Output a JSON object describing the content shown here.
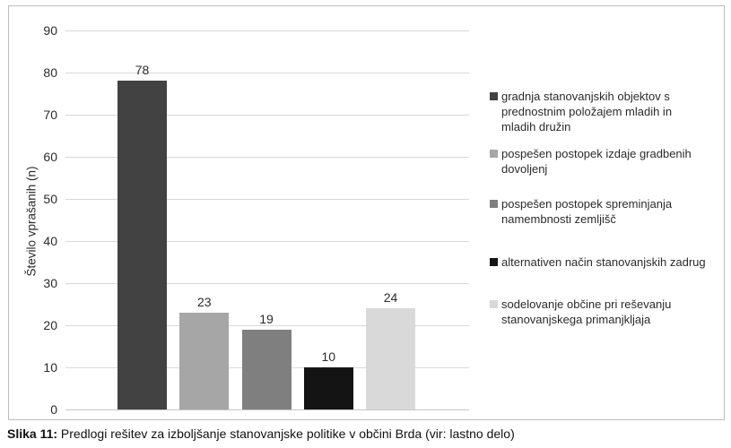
{
  "figure": {
    "caption_prefix": "Slika 11:",
    "caption_text": " Predlogi rešitev za izboljšanje stanovanjske politike v občini Brda (vir: lastno delo)"
  },
  "chart_data": {
    "type": "bar",
    "title": "",
    "xlabel": "",
    "ylabel": "Število vprašanih (n)",
    "ylim": [
      0,
      90
    ],
    "yticks": [
      90,
      80,
      70,
      60,
      50,
      40,
      30,
      20,
      10,
      0
    ],
    "grid": true,
    "legend_position": "right",
    "background": "#ffffff",
    "gridline_color": "#d9d9d9",
    "frame_border_color": "#bdbdbd",
    "items": [
      {
        "label": "gradnja stanovanjskih objektov s\nprednostnim položajem mladih in\nmladih družin",
        "value": 78,
        "color": "#424242"
      },
      {
        "label": "pospešen postopek izdaje gradbenih\ndovoljenj",
        "value": 23,
        "color": "#a6a6a6"
      },
      {
        "label": "pospešen postopek spreminjanja\nnamembnosti zemljišč",
        "value": 19,
        "color": "#7f7f7f"
      },
      {
        "label": "alternativen način stanovanjskih zadrug",
        "value": 10,
        "color": "#141414"
      },
      {
        "label": "sodelovanje občine pri reševanju\nstanovanjskega primanjkljaja",
        "value": 24,
        "color": "#d9d9d9"
      }
    ]
  }
}
